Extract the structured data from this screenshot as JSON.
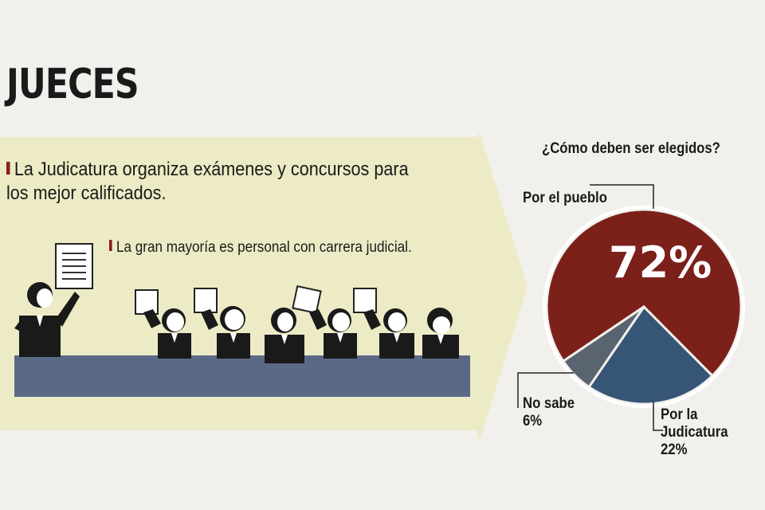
{
  "title": "JUECES",
  "bullets": [
    "La Judicatura organiza exámenes y concursos para los mejor calificados.",
    "La gran mayoría es personal con carrera judicial."
  ],
  "colors": {
    "arrow": "#ecebc6",
    "table": "#5a6a86",
    "accent": "#8b1f1a",
    "pueblo": "#7b211a",
    "judicatura": "#365577",
    "nosabe": "#5a6471"
  },
  "chart_data": {
    "type": "pie",
    "title": "¿Cómo deben ser elegidos?",
    "slices": [
      {
        "name": "Por el pueblo",
        "value": 72,
        "label": "72%",
        "color": "#7b211a"
      },
      {
        "name": "Por la Judicatura",
        "value": 22,
        "label": "22%",
        "color": "#365577"
      },
      {
        "name": "No sabe",
        "value": 6,
        "label": "6%",
        "color": "#5a6471"
      }
    ]
  },
  "labels": {
    "pueblo": "Por el pueblo",
    "judicatura_line1": "Por la",
    "judicatura_line2": "Judicatura",
    "judicatura_pct": "22%",
    "nosabe_line1": "No sabe",
    "nosabe_pct": "6%",
    "pueblo_pct": "72%"
  }
}
